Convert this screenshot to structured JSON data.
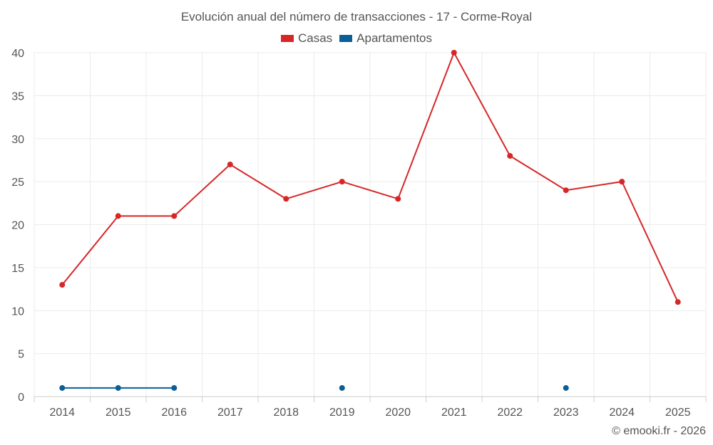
{
  "chart_data": {
    "type": "line",
    "title": "Evolución anual del número de transacciones - 17 - Corme-Royal",
    "categories": [
      "2014",
      "2015",
      "2016",
      "2017",
      "2018",
      "2019",
      "2020",
      "2021",
      "2022",
      "2023",
      "2024",
      "2025"
    ],
    "ylim": [
      0,
      40
    ],
    "yticks": [
      0,
      5,
      10,
      15,
      20,
      25,
      30,
      35,
      40
    ],
    "grid": true,
    "legend_position": "top-center",
    "series": [
      {
        "name": "Casas",
        "color": "#d62728",
        "values": [
          13,
          21,
          21,
          27,
          23,
          25,
          23,
          40,
          28,
          24,
          25,
          11
        ]
      },
      {
        "name": "Apartamentos",
        "color": "#0a5f96",
        "values": [
          1,
          1,
          1,
          null,
          null,
          1,
          null,
          null,
          null,
          1,
          null,
          null
        ]
      }
    ]
  },
  "credit": "© emooki.fr - 2026"
}
